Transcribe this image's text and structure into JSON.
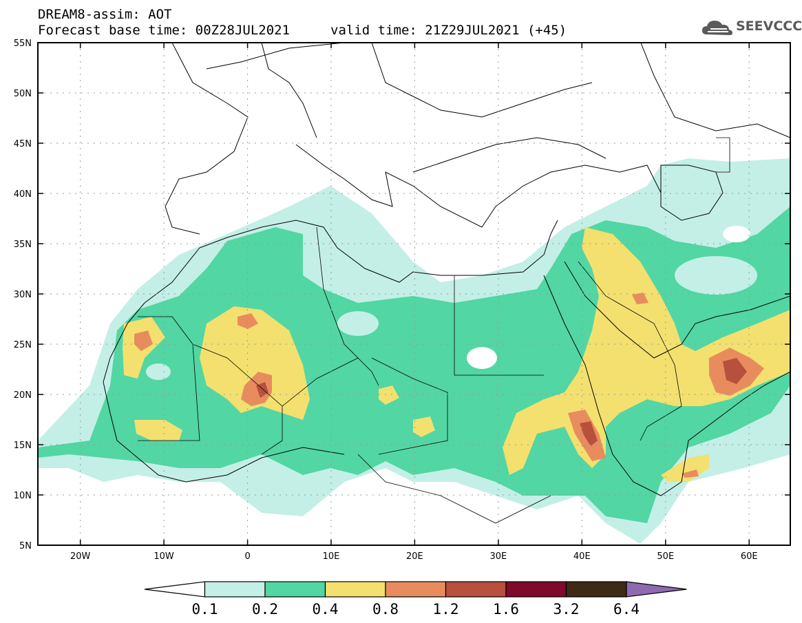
{
  "header": {
    "title": "DREAM8-assim: AOT",
    "base_time": "Forecast base time: 00Z28JUL2021",
    "valid_time": "valid time: 21Z29JUL2021 (+45)"
  },
  "logo": {
    "text": "SEEVCCC",
    "icon": "cloud-icon"
  },
  "map": {
    "lat_labels": [
      "55N",
      "50N",
      "45N",
      "40N",
      "35N",
      "30N",
      "25N",
      "20N",
      "15N",
      "10N",
      "5N"
    ],
    "lon_labels": [
      "20W",
      "10W",
      "0",
      "10E",
      "20E",
      "30E",
      "40E",
      "50E",
      "60E"
    ],
    "lon_range": [
      -25,
      65
    ],
    "lat_range": [
      5,
      55
    ]
  },
  "colorbar": {
    "labels": [
      "0.1",
      "0.2",
      "0.4",
      "0.8",
      "1.2",
      "1.6",
      "3.2",
      "6.4"
    ],
    "colors": [
      "#ffffff",
      "#c3efe6",
      "#52d6a3",
      "#f3e06f",
      "#e88c5e",
      "#b7503c",
      "#7e0a2c",
      "#3e2a16",
      "#8f6ab0"
    ]
  }
}
